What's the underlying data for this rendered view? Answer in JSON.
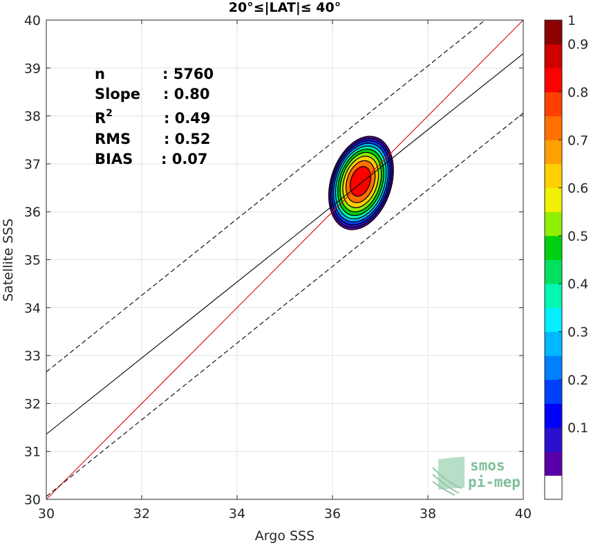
{
  "chart_data": {
    "type": "contour-density-scatter",
    "title": "20°≤|LAT|≤ 40°",
    "xlabel": "Argo SSS",
    "ylabel": "Satellite SSS",
    "xlim": [
      30,
      40
    ],
    "ylim": [
      30,
      40
    ],
    "x_ticks": [
      "30",
      "32",
      "34",
      "36",
      "38",
      "40"
    ],
    "y_ticks": [
      "30",
      "31",
      "32",
      "33",
      "34",
      "35",
      "36",
      "37",
      "38",
      "39",
      "40"
    ],
    "grid": true,
    "stats": {
      "n_label": "n",
      "n_value": ": 5760",
      "slope_label": "Slope",
      "slope_value": ": 0.80",
      "r2_label": "R",
      "r2_sup": "2",
      "r2_value": ": 0.49",
      "rms_label": "RMS",
      "rms_value": ": 0.52",
      "bias_label": "BIAS",
      "bias_value": ": 0.07"
    },
    "lines": [
      {
        "name": "one-to-one",
        "color": "#e00000",
        "style": "solid",
        "points": [
          [
            30,
            30
          ],
          [
            40,
            40
          ]
        ]
      },
      {
        "name": "regression",
        "color": "#000000",
        "style": "solid",
        "points": [
          [
            30,
            31.36
          ],
          [
            40,
            39.3
          ]
        ]
      },
      {
        "name": "upper-bound",
        "color": "#000000",
        "style": "dashed",
        "points": [
          [
            30,
            32.66
          ],
          [
            39.2,
            40
          ]
        ]
      },
      {
        "name": "lower-bound",
        "color": "#000000",
        "style": "dashed",
        "points": [
          [
            30,
            30.06
          ],
          [
            40,
            38.06
          ]
        ]
      }
    ],
    "density_peak": {
      "x": 36.58,
      "y": 36.65
    },
    "density_extent": {
      "x": [
        35.95,
        37.25
      ],
      "y": [
        35.57,
        37.63
      ]
    },
    "contour_levels": [
      0.05,
      0.1,
      0.2,
      0.3,
      0.4,
      0.5,
      0.6,
      0.7,
      0.8,
      0.9
    ],
    "colorbar": {
      "ticks": [
        "0.1",
        "0.2",
        "0.3",
        "0.4",
        "0.5",
        "0.6",
        "0.7",
        "0.8",
        "0.9",
        "1"
      ],
      "tick_values": [
        0.1,
        0.2,
        0.3,
        0.4,
        0.5,
        0.6,
        0.7,
        0.8,
        0.9,
        1.0
      ],
      "range": [
        0,
        1
      ],
      "colors": [
        "#ffffff",
        "#5a00a8",
        "#2a0fd0",
        "#0000ff",
        "#0040ff",
        "#0080ff",
        "#00b8ff",
        "#00f0ff",
        "#00f8b0",
        "#00e060",
        "#00d010",
        "#90f000",
        "#f0f000",
        "#ffd000",
        "#ffa000",
        "#ff7000",
        "#ff4000",
        "#ff0000",
        "#d00000",
        "#8b0000"
      ]
    }
  },
  "watermark": {
    "line1": "smos",
    "line2": "pi-mep"
  }
}
